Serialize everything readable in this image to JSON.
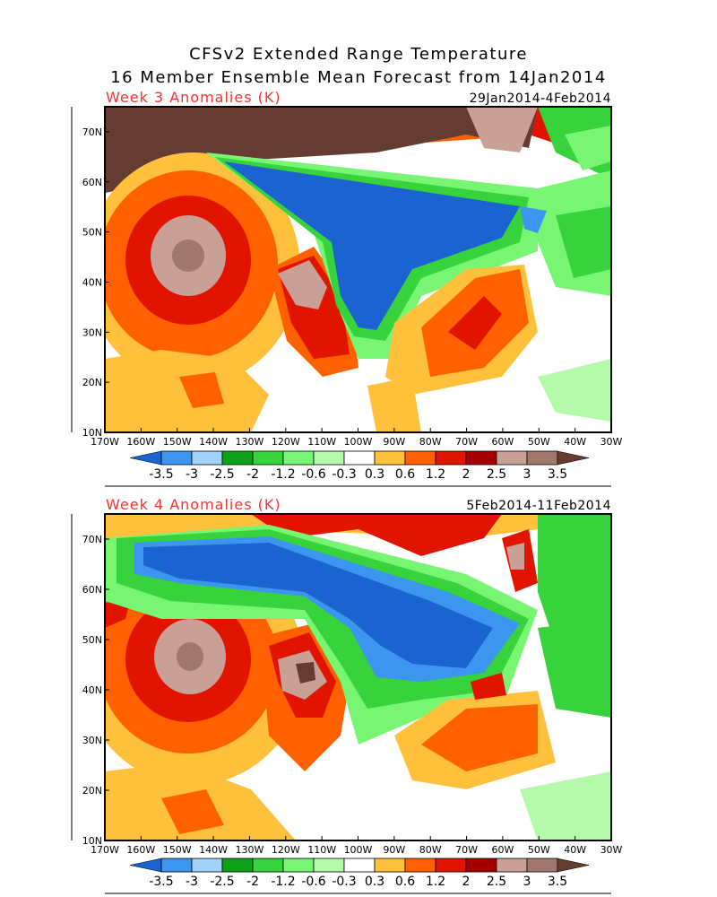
{
  "title": {
    "line1": "CFSv2 Extended Range Temperature",
    "line2": "16 Member Ensemble Mean Forecast from 14Jan2014"
  },
  "panels": [
    {
      "label": "Week 3 Anomalies (K)",
      "date_range": "29Jan2014-4Feb2014"
    },
    {
      "label": "Week 4 Anomalies (K)",
      "date_range": "5Feb2014-11Feb2014"
    }
  ],
  "axes": {
    "lon_ticks": [
      "170W",
      "160W",
      "150W",
      "140W",
      "130W",
      "120W",
      "110W",
      "100W",
      "90W",
      "80W",
      "70W",
      "60W",
      "50W",
      "40W",
      "30W"
    ],
    "lat_ticks": [
      "10N",
      "20N",
      "30N",
      "40N",
      "50N",
      "60N",
      "70N"
    ],
    "lon_range": [
      -170,
      -30
    ],
    "lat_range": [
      10,
      75
    ]
  },
  "colorbar": {
    "labels": [
      "-3.5",
      "-3",
      "-2.5",
      "-2",
      "-1.2",
      "-0.6",
      "-0.3",
      "0.3",
      "0.6",
      "1.2",
      "2",
      "2.5",
      "3",
      "3.5"
    ],
    "colors": [
      "#1a63d0",
      "#3c96f0",
      "#a0d2fa",
      "#0fa01a",
      "#37d23c",
      "#78f573",
      "#b4faaa",
      "#ffffff",
      "#ffc03c",
      "#ff6000",
      "#e11400",
      "#a50000",
      "#c8a096",
      "#a07870",
      "#643c32"
    ]
  }
}
